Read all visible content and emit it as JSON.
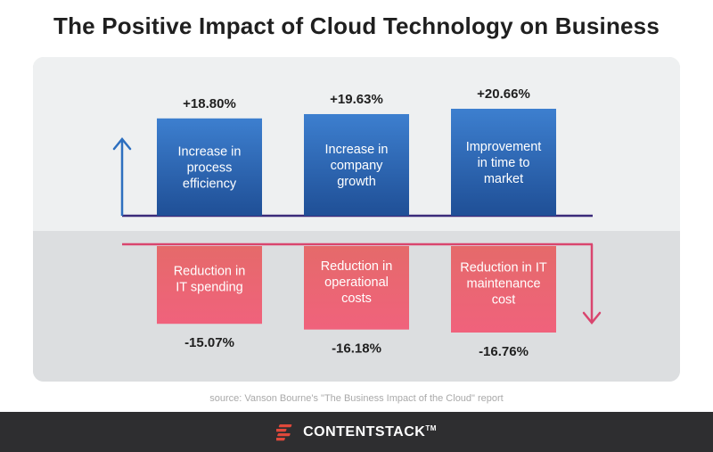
{
  "title": "The Positive Impact of Cloud Technology on Business",
  "source": "source: Vanson Bourne's \"The Business Impact of the Cloud\" report",
  "brand": {
    "name": "CONTENTSTACK",
    "tm": "TM",
    "logo_icon": "contentstack-logo-icon"
  },
  "colors": {
    "positive_top": "#3d7fcf",
    "positive_bottom": "#1f4f96",
    "negative_top": "#e56a6a",
    "negative_bottom": "#f0627c",
    "up_arrow": "#2d6fbf",
    "down_arrow": "#d9456e",
    "axis": "#3a2a7a",
    "brand_red": "#e0493b"
  },
  "chart_data": {
    "type": "bar",
    "title": "The Positive Impact of Cloud Technology on Business",
    "series": [
      {
        "name": "",
        "categories": [
          "Increase in process efficiency",
          "Increase in company growth",
          "Improvement in time to market"
        ],
        "label_lines": [
          [
            "Increase in",
            "process",
            "efficiency"
          ],
          [
            "Increase in",
            "company",
            "growth"
          ],
          [
            "Improvement",
            "in time to",
            "market"
          ]
        ],
        "values": [
          18.8,
          19.63,
          20.66
        ],
        "value_labels": [
          "+18.80%",
          "+19.63%",
          "+20.66%"
        ]
      },
      {
        "name": "",
        "categories": [
          "Reduction in IT spending",
          "Reduction in operational costs",
          "Reduction in IT maintenance cost"
        ],
        "label_lines": [
          [
            "Reduction in",
            "IT spending"
          ],
          [
            "Reduction in",
            "operational",
            "costs"
          ],
          [
            "Reduction in IT",
            "maintenance",
            "cost"
          ]
        ],
        "values": [
          -15.07,
          -16.18,
          -16.76
        ],
        "value_labels": [
          "-15.07%",
          "-16.18%",
          "-16.76%"
        ]
      }
    ],
    "ylim": [
      -16.76,
      20.66
    ],
    "grid": false,
    "legend": "none"
  }
}
